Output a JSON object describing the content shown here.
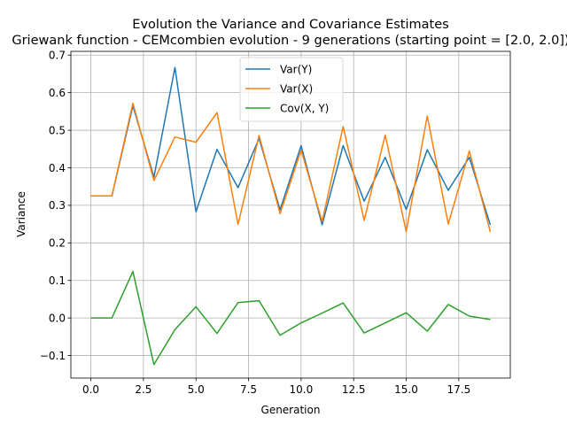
{
  "chart_data": {
    "type": "line",
    "title": "Evolution the Variance and Covariance Estimates",
    "subtitle": "Griewank function - CEMcombien evolution - 9 generations (starting point = [2.0, 2.0])",
    "xlabel": "Generation",
    "ylabel": "Variance",
    "xlim": [
      -0.95,
      19.95
    ],
    "ylim": [
      -0.16,
      0.71
    ],
    "xticks": [
      0,
      2.5,
      5,
      7.5,
      10,
      12.5,
      15,
      17.5
    ],
    "xtick_labels": [
      "0.0",
      "2.5",
      "5.0",
      "7.5",
      "10.0",
      "12.5",
      "15.0",
      "17.5"
    ],
    "yticks": [
      -0.1,
      0,
      0.1,
      0.2,
      0.3,
      0.4,
      0.5,
      0.6,
      0.7
    ],
    "ytick_labels": [
      "−0.1",
      "0.0",
      "0.1",
      "0.2",
      "0.3",
      "0.4",
      "0.5",
      "0.6",
      "0.7"
    ],
    "grid": true,
    "legend_position": "top-center",
    "x": [
      0,
      1,
      2,
      3,
      4,
      5,
      6,
      7,
      8,
      9,
      10,
      11,
      12,
      13,
      14,
      15,
      16,
      17,
      18,
      19
    ],
    "series": [
      {
        "name": "Var(Y)",
        "color": "#1f77b4",
        "values": [
          0.325,
          0.325,
          0.565,
          0.375,
          0.667,
          0.283,
          0.449,
          0.347,
          0.478,
          0.288,
          0.459,
          0.248,
          0.459,
          0.311,
          0.428,
          0.289,
          0.448,
          0.34,
          0.428,
          0.248
        ]
      },
      {
        "name": "Var(X)",
        "color": "#ff7f0e",
        "values": [
          0.325,
          0.325,
          0.572,
          0.366,
          0.482,
          0.468,
          0.547,
          0.249,
          0.486,
          0.278,
          0.447,
          0.257,
          0.51,
          0.26,
          0.487,
          0.23,
          0.538,
          0.25,
          0.445,
          0.229
        ]
      },
      {
        "name": "Cov(X, Y)",
        "color": "#2ca02c",
        "values": [
          0.0,
          0.0,
          0.124,
          -0.124,
          -0.031,
          0.03,
          -0.041,
          0.041,
          0.046,
          -0.046,
          -0.013,
          0.013,
          0.04,
          -0.04,
          -0.013,
          0.014,
          -0.035,
          0.036,
          0.005,
          -0.004
        ]
      }
    ]
  }
}
